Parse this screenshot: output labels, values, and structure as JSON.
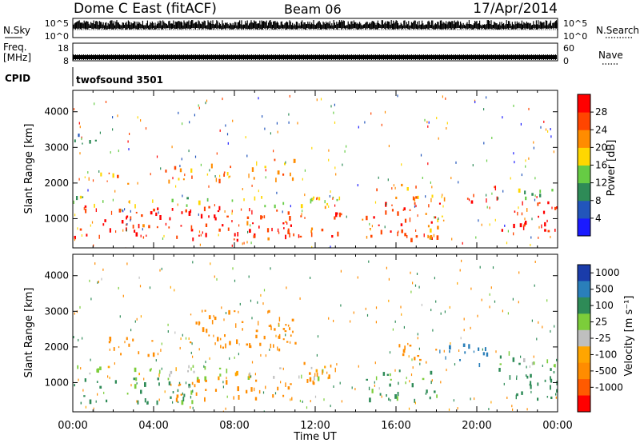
{
  "header": {
    "station": "Dome C East (fitACF)",
    "beam": "Beam 06",
    "date": "17/Apr/2014"
  },
  "top_panels": {
    "nsky": {
      "label": "N.Sky",
      "ticks": [
        "10^5",
        "10^0"
      ]
    },
    "nsearch": {
      "label": "N.Search",
      "ticks": [
        "10^5",
        "10^0"
      ]
    },
    "freq": {
      "label_line1": "Freq.",
      "label_line2": "[MHz]",
      "ticks": [
        "18",
        "8"
      ]
    },
    "nave": {
      "label": "Nave",
      "ticks": [
        "60",
        "0"
      ]
    },
    "cpid": {
      "label": "CPID",
      "value": "twofsound 3501"
    }
  },
  "colors": {
    "power_scale": [
      "#1a1aff",
      "#2255bb",
      "#2e8b57",
      "#66cc44",
      "#ffd700",
      "#ff8c00",
      "#ff4500",
      "#ff0000"
    ],
    "velocity_scale": [
      "#ff0000",
      "#ff5a00",
      "#ff8c00",
      "#ffa500",
      "#bfbfbf",
      "#7ccd3a",
      "#2e8b57",
      "#2a7fba",
      "#1a3caa"
    ]
  },
  "chart_data": [
    {
      "type": "heatmap",
      "name": "power",
      "xlabel": "",
      "ylabel": "Slant Range [km]",
      "xlim": [
        0,
        24
      ],
      "ylim": [
        180,
        4600
      ],
      "yticks": [
        "1000",
        "2000",
        "3000",
        "4000"
      ],
      "colorbar": {
        "label": "Power [dB]",
        "ticks": [
          "4",
          "8",
          "12",
          "16",
          "20",
          "24",
          "28"
        ],
        "range": [
          0,
          30
        ]
      },
      "blobs": [
        {
          "t0": 0.0,
          "t1": 13.3,
          "r0": 420,
          "r1": 1380,
          "level": 28
        },
        {
          "t0": 0.0,
          "t1": 13.3,
          "r0": 1380,
          "r1": 1650,
          "level": 14
        },
        {
          "t0": 0.5,
          "t1": 3.0,
          "r0": 2000,
          "r1": 2350,
          "level": 22
        },
        {
          "t0": 4.5,
          "t1": 8.0,
          "r0": 2050,
          "r1": 2600,
          "level": 22
        },
        {
          "t0": 8.5,
          "t1": 11.0,
          "r0": 2100,
          "r1": 2700,
          "level": 22
        },
        {
          "t0": 0.0,
          "t1": 1.2,
          "r0": 2900,
          "r1": 3400,
          "level": 8
        },
        {
          "t0": 14.3,
          "t1": 18.3,
          "r0": 450,
          "r1": 1500,
          "level": 27
        },
        {
          "t0": 15.0,
          "t1": 18.0,
          "r0": 1600,
          "r1": 2000,
          "level": 20
        },
        {
          "t0": 17.5,
          "t1": 18.5,
          "r0": 500,
          "r1": 1700,
          "level": 18
        },
        {
          "t0": 19.5,
          "t1": 21.0,
          "r0": 1500,
          "r1": 2000,
          "level": 26
        },
        {
          "t0": 21.0,
          "t1": 24.0,
          "r0": 600,
          "r1": 1600,
          "level": 28
        },
        {
          "t0": 21.0,
          "t1": 24.0,
          "r0": 1600,
          "r1": 1900,
          "level": 12
        }
      ]
    },
    {
      "type": "heatmap",
      "name": "velocity",
      "xlabel": "Time UT",
      "ylabel": "Slant Range [km]",
      "xlim": [
        0,
        24
      ],
      "ylim": [
        180,
        4600
      ],
      "xticks": [
        "00:00",
        "04:00",
        "08:00",
        "12:00",
        "16:00",
        "20:00",
        "00:00"
      ],
      "yticks": [
        "1000",
        "2000",
        "3000",
        "4000"
      ],
      "colorbar": {
        "label": "Velocity [m s⁻¹]",
        "ticks": [
          "1000",
          "500",
          "100",
          "25",
          "-25",
          "-100",
          "-500",
          "-1000"
        ]
      },
      "blobs": [
        {
          "t0": 0.0,
          "t1": 6.0,
          "r0": 450,
          "r1": 1150,
          "level": 150
        },
        {
          "t0": 0.0,
          "t1": 13.0,
          "r0": 1150,
          "r1": 1500,
          "level": 10
        },
        {
          "t0": 5.0,
          "t1": 11.0,
          "r0": 500,
          "r1": 1100,
          "level": -200
        },
        {
          "t0": 1.5,
          "t1": 4.5,
          "r0": 1800,
          "r1": 2300,
          "level": -300
        },
        {
          "t0": 5.5,
          "t1": 11.0,
          "r0": 1900,
          "r1": 3100,
          "level": -300
        },
        {
          "t0": 11.0,
          "t1": 13.2,
          "r0": 1000,
          "r1": 1600,
          "level": -250
        },
        {
          "t0": 14.5,
          "t1": 18.0,
          "r0": 500,
          "r1": 1400,
          "level": 120
        },
        {
          "t0": 16.0,
          "t1": 18.0,
          "r0": 1600,
          "r1": 2200,
          "level": -300
        },
        {
          "t0": 18.0,
          "t1": 20.5,
          "r0": 1500,
          "r1": 2100,
          "level": 700
        },
        {
          "t0": 21.0,
          "t1": 24.0,
          "r0": 550,
          "r1": 1500,
          "level": 200
        },
        {
          "t0": 21.0,
          "t1": 24.0,
          "r0": 1500,
          "r1": 1900,
          "level": 60
        }
      ]
    }
  ]
}
